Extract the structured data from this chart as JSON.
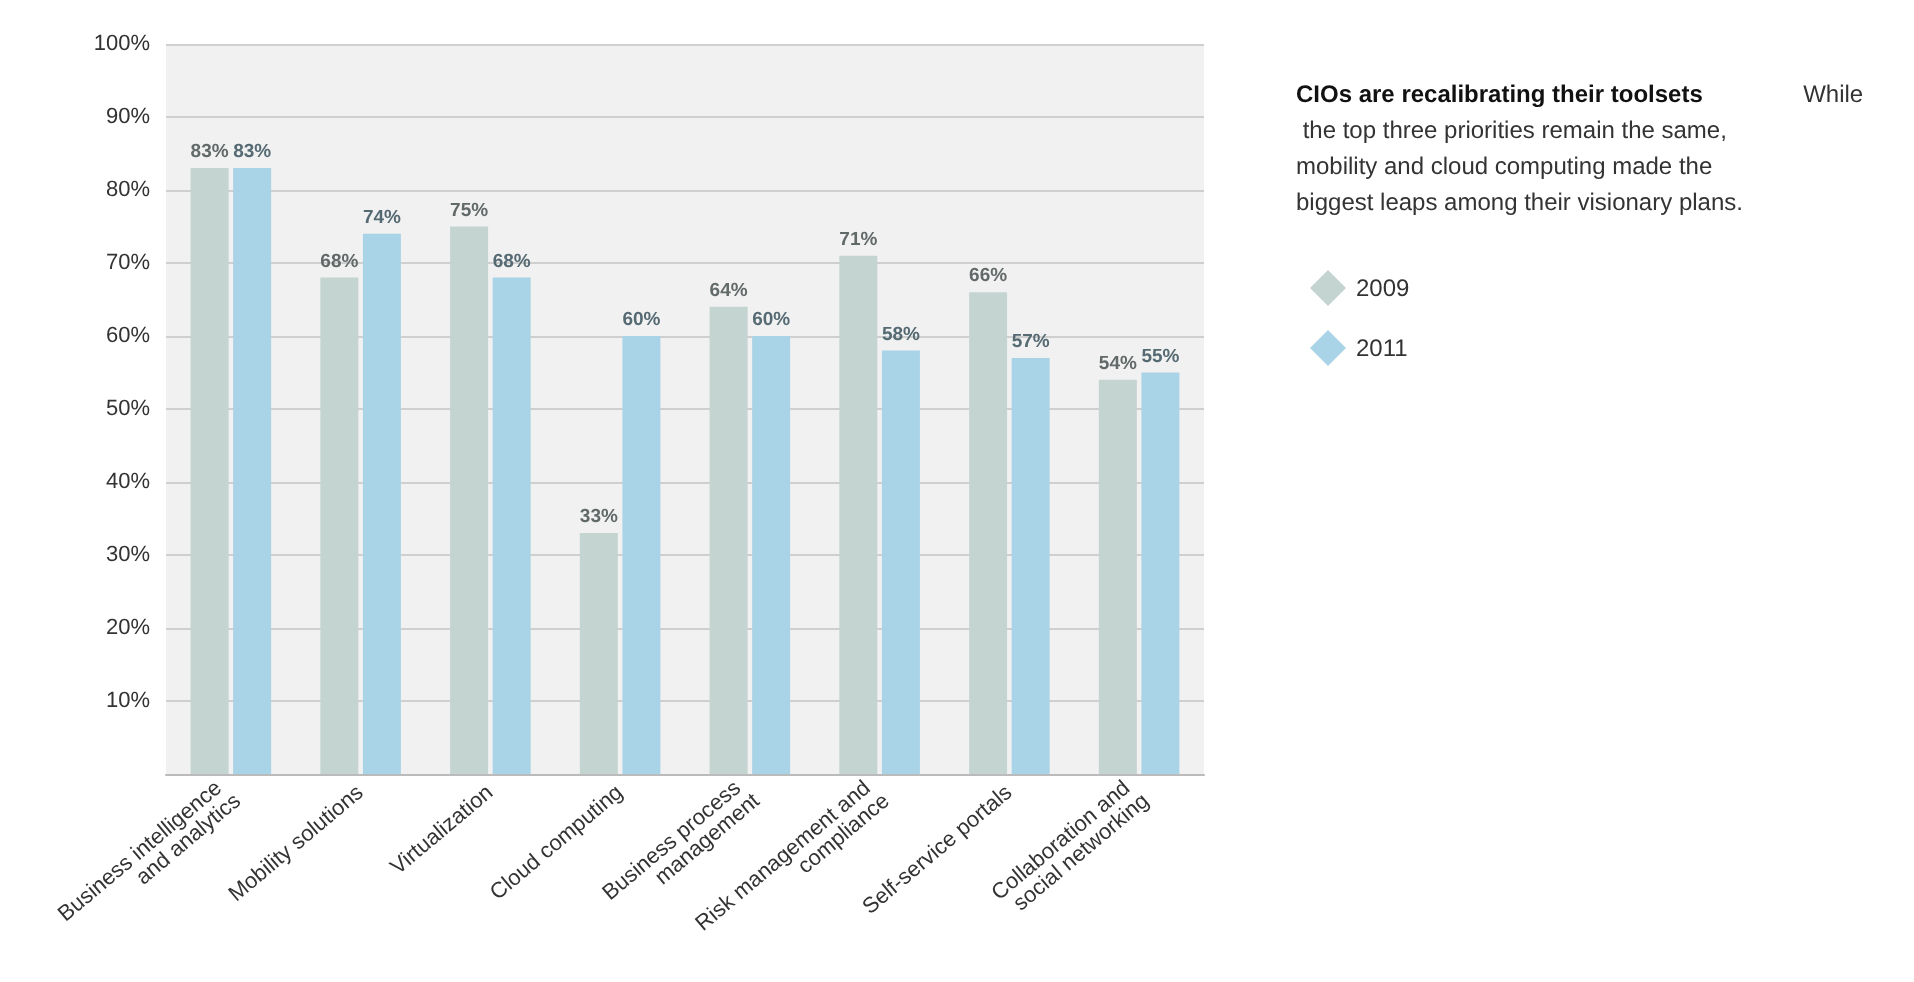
{
  "chart_data": {
    "type": "bar",
    "title": "CIOs are recalibrating their toolsets",
    "subtitle": "While the top three priorities remain the same, mobility and cloud computing made the biggest leaps among their visionary plans.",
    "categories": [
      "Business intelligence and analytics",
      "Mobility solutions",
      "Virtualization",
      "Cloud computing",
      "Business process management",
      "Risk management and compliance",
      "Self-service portals",
      "Collaboration and social networking"
    ],
    "series": [
      {
        "name": "2009",
        "color": "#c4d4d1",
        "values": [
          83,
          68,
          75,
          33,
          64,
          71,
          66,
          54
        ],
        "value_labels": [
          "83%",
          "68%",
          "75%",
          "33%",
          "64%",
          "71%",
          "66%",
          "54%"
        ]
      },
      {
        "name": "2011",
        "color": "#a9d3e6",
        "values": [
          83,
          74,
          68,
          60,
          60,
          58,
          57,
          55
        ],
        "value_labels": [
          "83%",
          "74%",
          "68%",
          "60%",
          "60%",
          "58%",
          "57%",
          "55%"
        ]
      }
    ],
    "ylim": [
      0,
      100
    ],
    "yticks": [
      {
        "value": 10,
        "label": "10%"
      },
      {
        "value": 20,
        "label": "20%"
      },
      {
        "value": 30,
        "label": "30%"
      },
      {
        "value": 40,
        "label": "40%"
      },
      {
        "value": 50,
        "label": "50%"
      },
      {
        "value": 60,
        "label": "60%"
      },
      {
        "value": 70,
        "label": "70%"
      },
      {
        "value": 80,
        "label": "80%"
      },
      {
        "value": 90,
        "label": "90%"
      },
      {
        "value": 100,
        "label": "100%"
      }
    ],
    "grid": "y",
    "legend": "right"
  }
}
